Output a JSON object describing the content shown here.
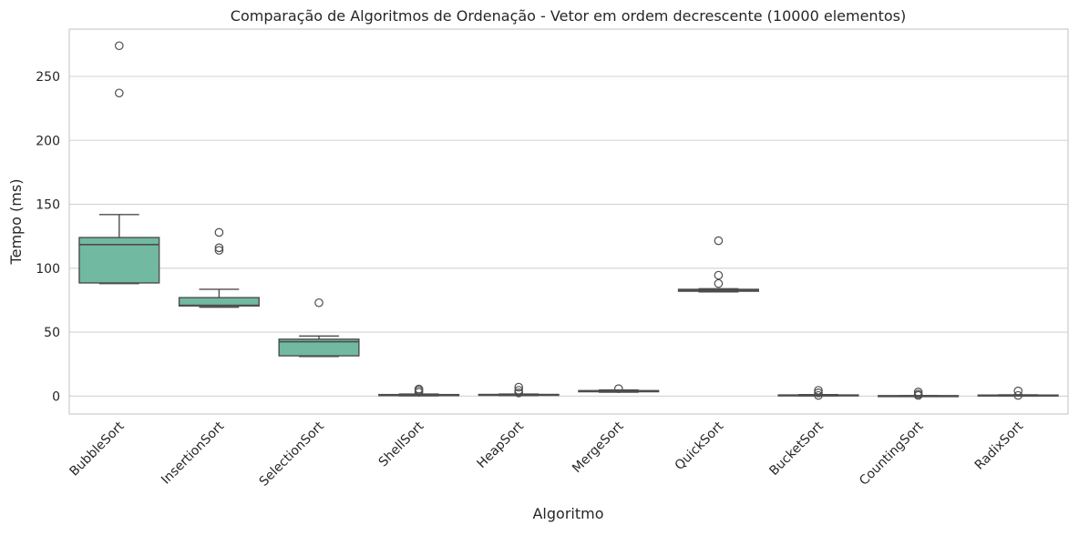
{
  "chart_data": {
    "type": "box",
    "title": "Comparação de Algoritmos de Ordenação - Vetor em ordem decrescente (10000 elementos)",
    "xlabel": "Algoritmo",
    "ylabel": "Tempo (ms)",
    "ylim": [
      -14,
      287
    ],
    "yticks": [
      0,
      50,
      100,
      150,
      200,
      250
    ],
    "grid": true,
    "colors": {
      "box_fill": "#72b9a1",
      "line": "#4d4d4d",
      "grid": "#d3d3d3",
      "spine": "#cccccc"
    },
    "categories": [
      "BubbleSort",
      "InsertionSort",
      "SelectionSort",
      "ShellSort",
      "HeapSort",
      "MergeSort",
      "QuickSort",
      "BucketSort",
      "CountingSort",
      "RadixSort"
    ],
    "boxes": [
      {
        "whislo": 88,
        "q1": 88.5,
        "med": 118.5,
        "q3": 124,
        "whishi": 142,
        "fliers": [
          237,
          274
        ]
      },
      {
        "whislo": 69.5,
        "q1": 70.5,
        "med": 71,
        "q3": 77,
        "whishi": 83.5,
        "fliers": [
          114,
          116,
          128
        ]
      },
      {
        "whislo": 31,
        "q1": 31.5,
        "med": 42.5,
        "q3": 44.5,
        "whishi": 47,
        "fliers": [
          73
        ]
      },
      {
        "whislo": 0.2,
        "q1": 0.4,
        "med": 0.6,
        "q3": 1.2,
        "whishi": 1.6,
        "fliers": [
          3,
          4.5,
          5.5
        ]
      },
      {
        "whislo": 0.5,
        "q1": 0.8,
        "med": 1,
        "q3": 1.3,
        "whishi": 1.6,
        "fliers": [
          2.5,
          4.5,
          7
        ]
      },
      {
        "whislo": 3,
        "q1": 3.4,
        "med": 3.8,
        "q3": 4.3,
        "whishi": 4.8,
        "fliers": [
          5.8
        ]
      },
      {
        "whislo": 81.5,
        "q1": 82,
        "med": 82.7,
        "q3": 83.5,
        "whishi": 84,
        "fliers": [
          88,
          94.5,
          121.5
        ]
      },
      {
        "whislo": 0.2,
        "q1": 0.4,
        "med": 0.6,
        "q3": 0.9,
        "whishi": 1.2,
        "fliers": [
          0.5,
          2.5,
          4.5
        ]
      },
      {
        "whislo": 0,
        "q1": 0.1,
        "med": 0.2,
        "q3": 0.3,
        "whishi": 0.4,
        "fliers": [
          0.5,
          1.5,
          3.2
        ]
      },
      {
        "whislo": 0.2,
        "q1": 0.4,
        "med": 0.5,
        "q3": 0.8,
        "whishi": 1,
        "fliers": [
          0.5,
          4
        ]
      }
    ]
  }
}
